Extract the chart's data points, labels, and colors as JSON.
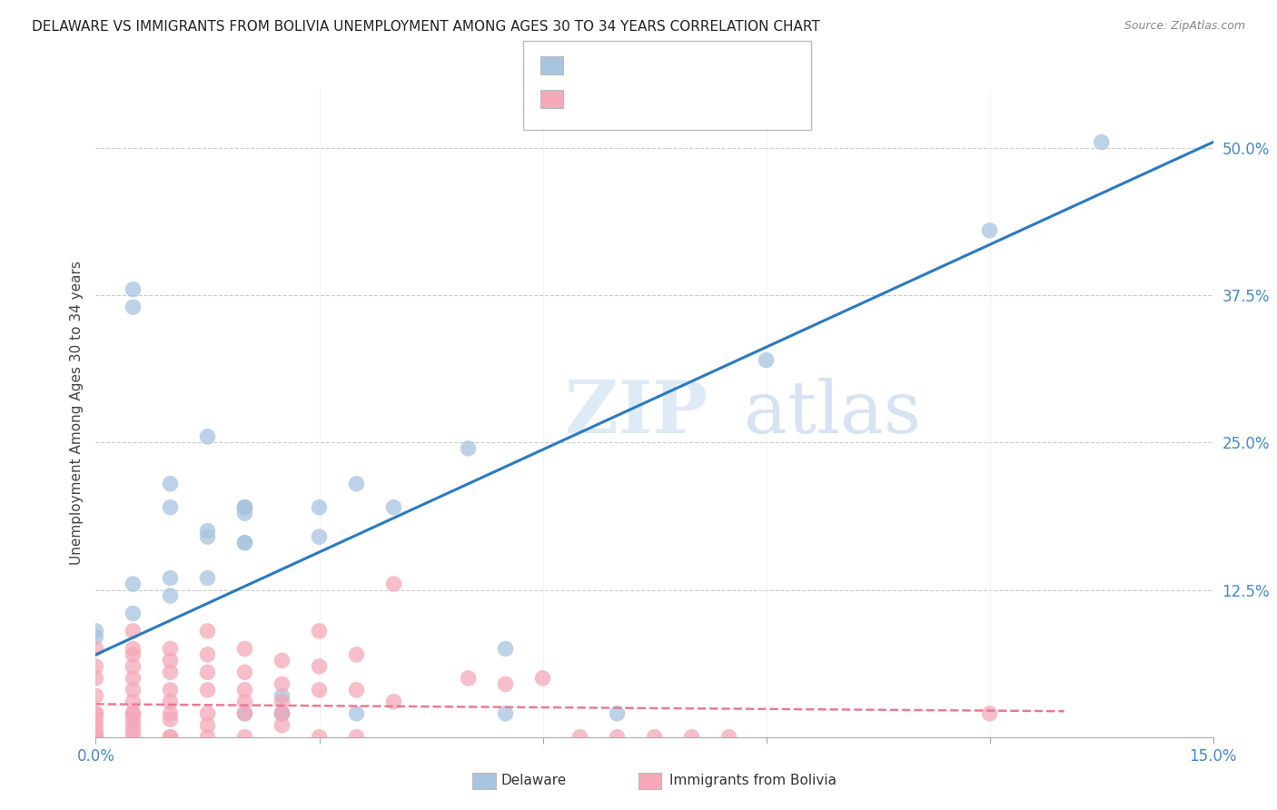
{
  "title": "DELAWARE VS IMMIGRANTS FROM BOLIVIA UNEMPLOYMENT AMONG AGES 30 TO 34 YEARS CORRELATION CHART",
  "source": "Source: ZipAtlas.com",
  "ylabel": "Unemployment Among Ages 30 to 34 years",
  "xlim": [
    0.0,
    0.15
  ],
  "ylim": [
    0.0,
    0.55
  ],
  "watermark_zip": "ZIP",
  "watermark_atlas": "atlas",
  "delaware_color": "#a8c4e0",
  "bolivia_color": "#f4a8b8",
  "delaware_line_color": "#2a7abf",
  "bolivia_line_color": "#e87a96",
  "delaware_line": [
    [
      0.0,
      0.07
    ],
    [
      0.15,
      0.505
    ]
  ],
  "bolivia_line": [
    [
      0.0,
      0.028
    ],
    [
      0.13,
      0.022
    ]
  ],
  "delaware_scatter": [
    [
      0.0,
      0.085
    ],
    [
      0.0,
      0.09
    ],
    [
      0.005,
      0.13
    ],
    [
      0.005,
      0.105
    ],
    [
      0.005,
      0.38
    ],
    [
      0.005,
      0.365
    ],
    [
      0.01,
      0.135
    ],
    [
      0.01,
      0.12
    ],
    [
      0.01,
      0.195
    ],
    [
      0.01,
      0.215
    ],
    [
      0.015,
      0.255
    ],
    [
      0.015,
      0.17
    ],
    [
      0.015,
      0.175
    ],
    [
      0.015,
      0.135
    ],
    [
      0.02,
      0.195
    ],
    [
      0.02,
      0.19
    ],
    [
      0.02,
      0.165
    ],
    [
      0.02,
      0.195
    ],
    [
      0.02,
      0.195
    ],
    [
      0.02,
      0.165
    ],
    [
      0.02,
      0.02
    ],
    [
      0.025,
      0.02
    ],
    [
      0.025,
      0.035
    ],
    [
      0.025,
      0.02
    ],
    [
      0.025,
      0.02
    ],
    [
      0.03,
      0.17
    ],
    [
      0.03,
      0.195
    ],
    [
      0.035,
      0.215
    ],
    [
      0.035,
      0.02
    ],
    [
      0.04,
      0.195
    ],
    [
      0.05,
      0.245
    ],
    [
      0.055,
      0.075
    ],
    [
      0.055,
      0.02
    ],
    [
      0.07,
      0.02
    ],
    [
      0.09,
      0.32
    ],
    [
      0.12,
      0.43
    ],
    [
      0.135,
      0.505
    ]
  ],
  "bolivia_scatter": [
    [
      0.0,
      0.075
    ],
    [
      0.0,
      0.06
    ],
    [
      0.0,
      0.05
    ],
    [
      0.0,
      0.035
    ],
    [
      0.0,
      0.02
    ],
    [
      0.0,
      0.02
    ],
    [
      0.0,
      0.015
    ],
    [
      0.0,
      0.01
    ],
    [
      0.0,
      0.005
    ],
    [
      0.0,
      0.0
    ],
    [
      0.0,
      0.0
    ],
    [
      0.0,
      0.0
    ],
    [
      0.005,
      0.09
    ],
    [
      0.005,
      0.075
    ],
    [
      0.005,
      0.07
    ],
    [
      0.005,
      0.06
    ],
    [
      0.005,
      0.05
    ],
    [
      0.005,
      0.04
    ],
    [
      0.005,
      0.03
    ],
    [
      0.005,
      0.02
    ],
    [
      0.005,
      0.02
    ],
    [
      0.005,
      0.015
    ],
    [
      0.005,
      0.01
    ],
    [
      0.005,
      0.005
    ],
    [
      0.005,
      0.0
    ],
    [
      0.01,
      0.075
    ],
    [
      0.01,
      0.065
    ],
    [
      0.01,
      0.055
    ],
    [
      0.01,
      0.04
    ],
    [
      0.01,
      0.03
    ],
    [
      0.01,
      0.02
    ],
    [
      0.01,
      0.015
    ],
    [
      0.01,
      0.0
    ],
    [
      0.01,
      0.0
    ],
    [
      0.015,
      0.09
    ],
    [
      0.015,
      0.07
    ],
    [
      0.015,
      0.055
    ],
    [
      0.015,
      0.04
    ],
    [
      0.015,
      0.02
    ],
    [
      0.015,
      0.01
    ],
    [
      0.015,
      0.0
    ],
    [
      0.02,
      0.075
    ],
    [
      0.02,
      0.055
    ],
    [
      0.02,
      0.04
    ],
    [
      0.02,
      0.03
    ],
    [
      0.02,
      0.02
    ],
    [
      0.02,
      0.0
    ],
    [
      0.025,
      0.065
    ],
    [
      0.025,
      0.045
    ],
    [
      0.025,
      0.03
    ],
    [
      0.025,
      0.02
    ],
    [
      0.025,
      0.01
    ],
    [
      0.03,
      0.09
    ],
    [
      0.03,
      0.06
    ],
    [
      0.03,
      0.04
    ],
    [
      0.03,
      0.0
    ],
    [
      0.035,
      0.07
    ],
    [
      0.035,
      0.04
    ],
    [
      0.035,
      0.0
    ],
    [
      0.04,
      0.13
    ],
    [
      0.04,
      0.03
    ],
    [
      0.05,
      0.05
    ],
    [
      0.055,
      0.045
    ],
    [
      0.06,
      0.05
    ],
    [
      0.065,
      0.0
    ],
    [
      0.07,
      0.0
    ],
    [
      0.075,
      0.0
    ],
    [
      0.08,
      0.0
    ],
    [
      0.085,
      0.0
    ],
    [
      0.12,
      0.02
    ]
  ]
}
